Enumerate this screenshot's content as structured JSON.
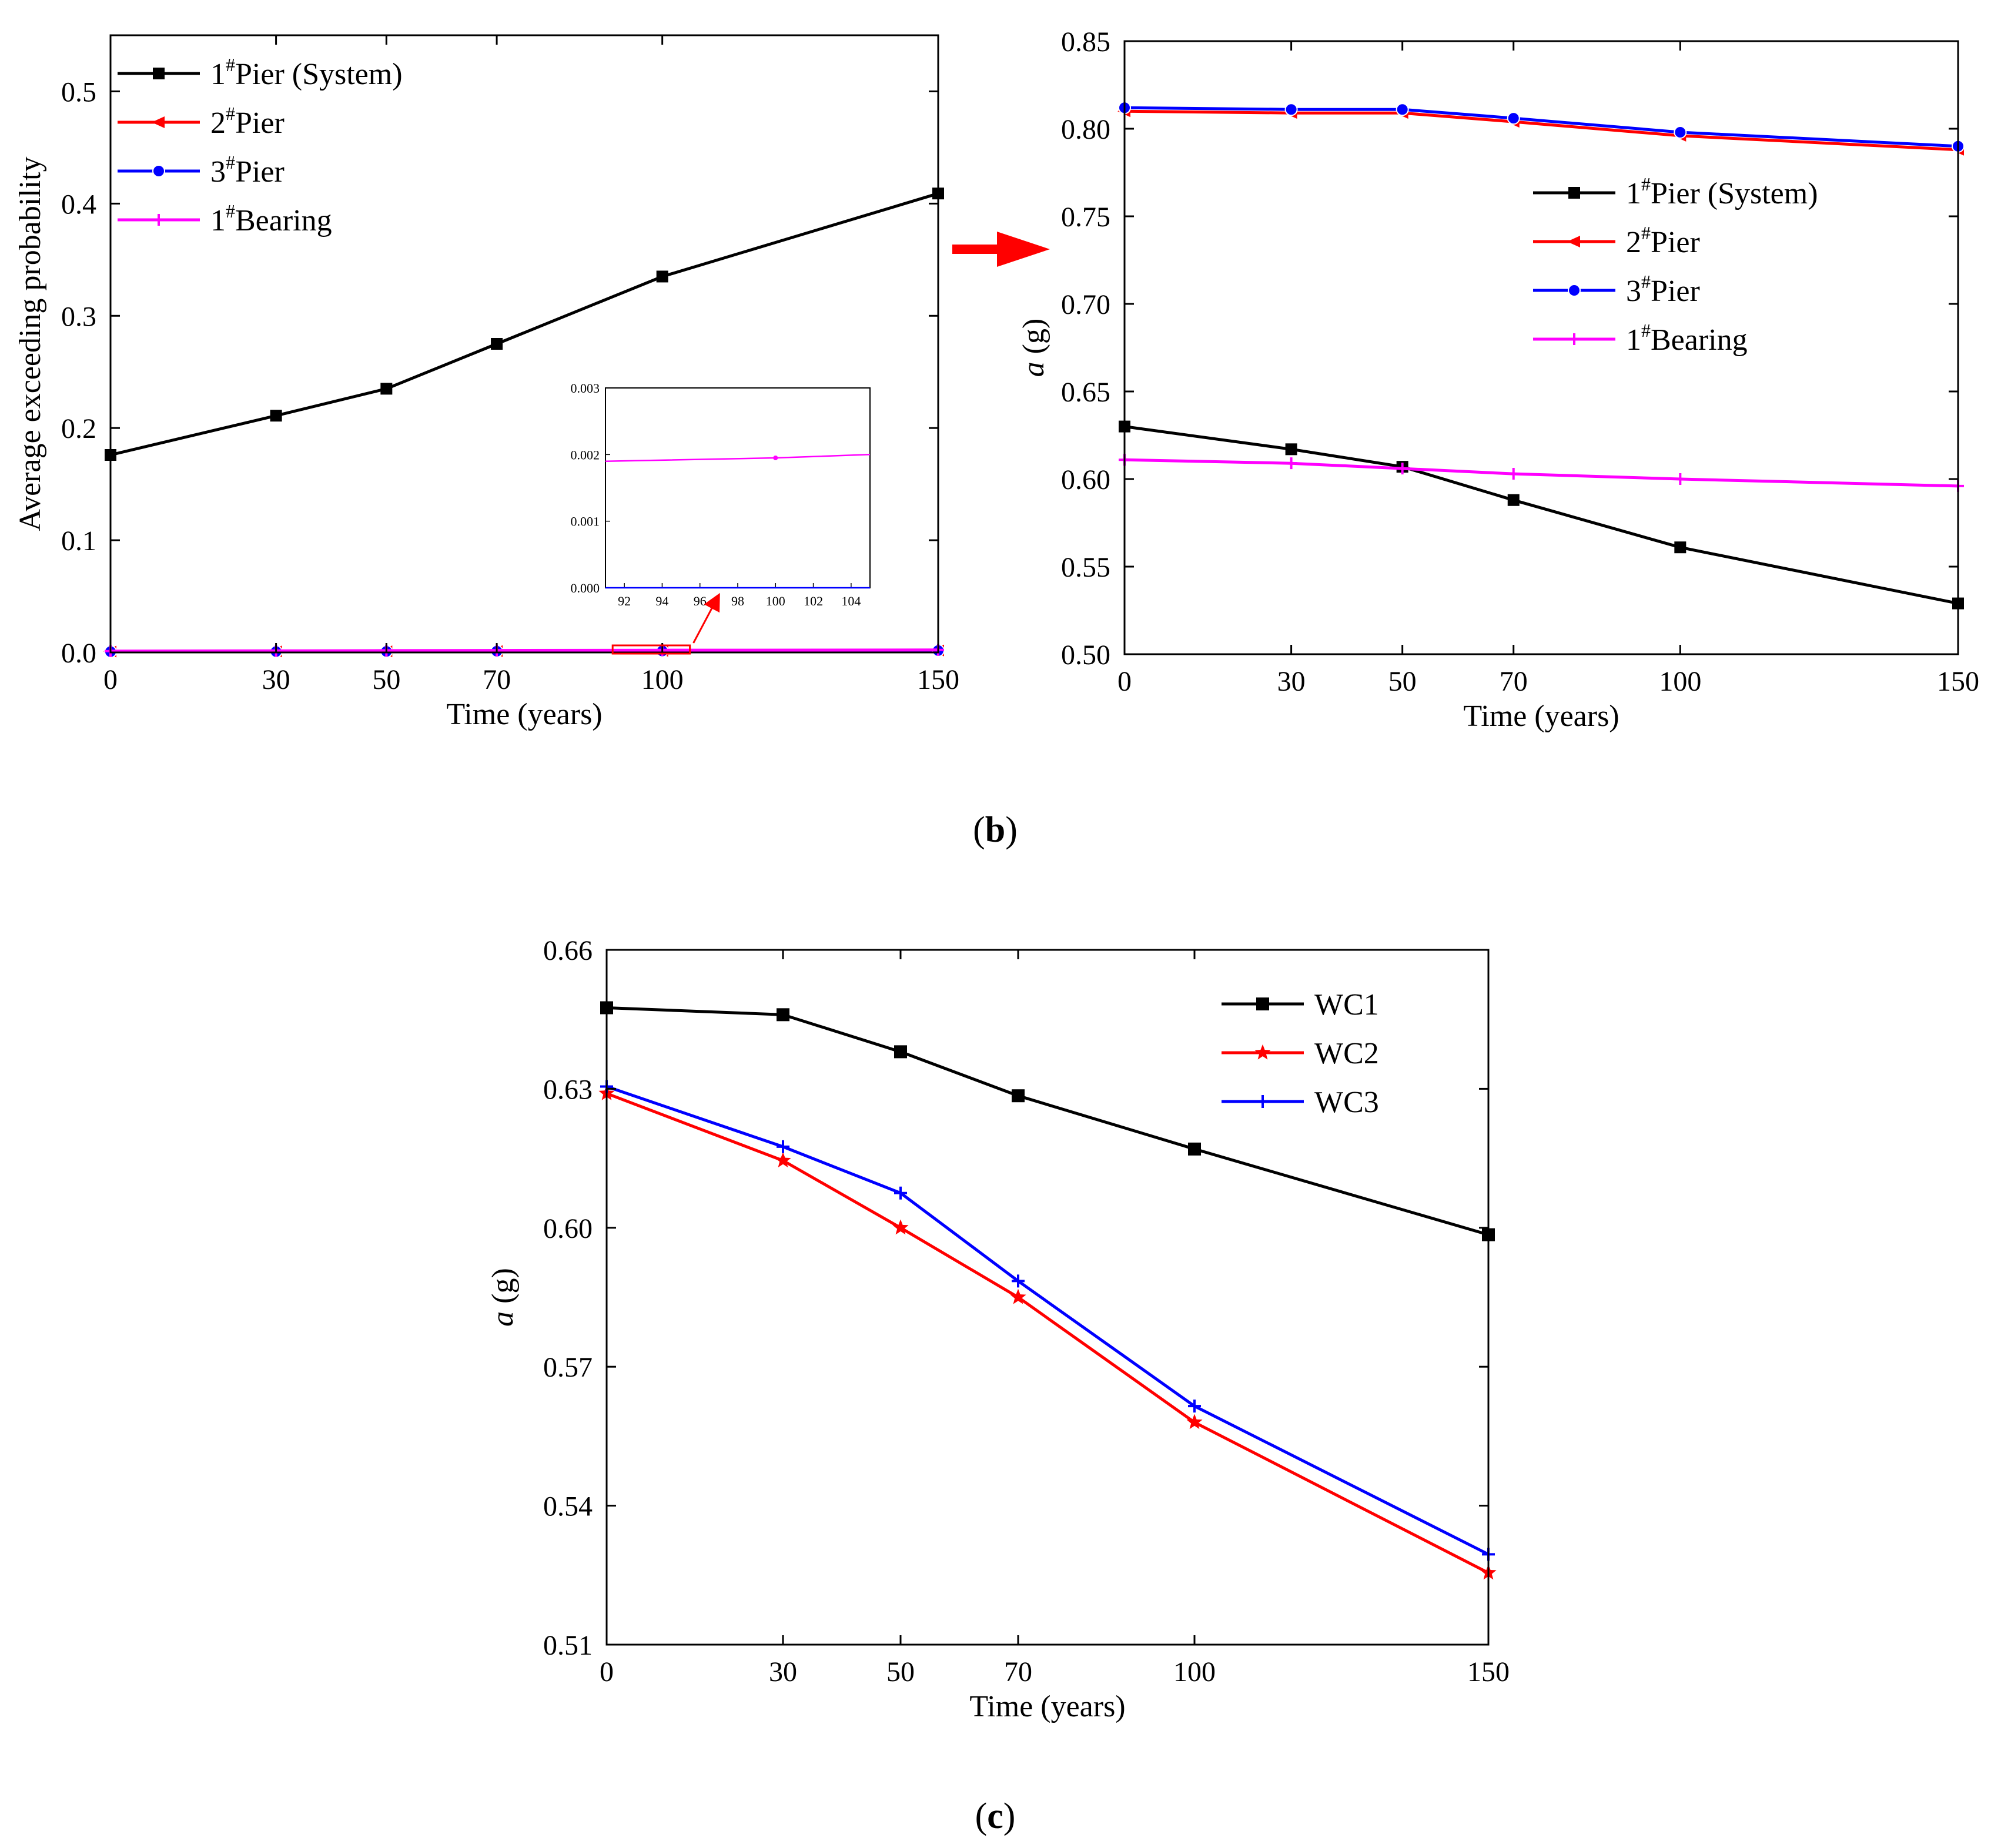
{
  "colors": {
    "black": "#000000",
    "red": "#ff0000",
    "blue": "#0000ff",
    "magenta": "#ff00ff"
  },
  "panel_labels": {
    "b_open": "(",
    "b_letter": "b",
    "b_close": ")",
    "c_open": "(",
    "c_letter": "c",
    "c_close": ")"
  },
  "chart_data": [
    {
      "id": "b-left",
      "type": "line",
      "title": "",
      "xlabel": "Time (years)",
      "ylabel": "Average exceeding probability",
      "xlim": [
        0,
        150
      ],
      "ylim": [
        0,
        0.55
      ],
      "xticks": [
        0,
        30,
        50,
        70,
        100,
        150
      ],
      "yticks": [
        0.0,
        0.1,
        0.2,
        0.3,
        0.4,
        0.5
      ],
      "ytick_labels": [
        "0.0",
        "0.1",
        "0.2",
        "0.3",
        "0.4",
        "0.5"
      ],
      "legend_position": "top-left",
      "x": [
        0,
        30,
        50,
        70,
        100,
        150
      ],
      "series": [
        {
          "name": "Pier (System)",
          "prefix": "1",
          "sup": "#",
          "color": "#000000",
          "marker": "square",
          "values": [
            0.176,
            0.211,
            0.235,
            0.275,
            0.335,
            0.409
          ]
        },
        {
          "name": "Pier",
          "prefix": "2",
          "sup": "#",
          "color": "#ff0000",
          "marker": "triangle-left",
          "values": [
            0.0008,
            0.0009,
            0.001,
            0.0012,
            0.0014,
            0.0018
          ]
        },
        {
          "name": "Pier",
          "prefix": "3",
          "sup": "#",
          "color": "#0000ff",
          "marker": "circle",
          "values": [
            0.0007,
            0.0008,
            0.0009,
            0.0011,
            0.0013,
            0.0017
          ]
        },
        {
          "name": "Bearing",
          "prefix": "1",
          "sup": "#",
          "color": "#ff00ff",
          "marker": "plus",
          "values": [
            0.0012,
            0.0014,
            0.0016,
            0.0018,
            0.002,
            0.0022
          ]
        }
      ],
      "inset": {
        "xlim": [
          91,
          105
        ],
        "ylim": [
          0,
          0.003
        ],
        "xticks": [
          92,
          94,
          96,
          98,
          100,
          102,
          104
        ],
        "yticks": [
          0.0,
          0.001,
          0.002,
          0.003
        ],
        "ytick_labels": [
          "0.000",
          "0.001",
          "0.002",
          "0.003"
        ],
        "x": [
          91,
          100,
          105
        ],
        "series": [
          {
            "name": "Bearing",
            "color": "#ff00ff",
            "values": [
              0.0019,
              0.00195,
              0.002
            ]
          },
          {
            "name": "Pier",
            "color": "#0000ff",
            "values": [
              0.0,
              0.0,
              0.0
            ]
          }
        ]
      }
    },
    {
      "id": "b-right",
      "type": "line",
      "title": "",
      "xlabel": "Time (years)",
      "ylabel_italic": "a",
      "ylabel_rest": " (g)",
      "xlim": [
        0,
        150
      ],
      "ylim": [
        0.5,
        0.85
      ],
      "xticks": [
        0,
        30,
        50,
        70,
        100,
        150
      ],
      "yticks": [
        0.5,
        0.55,
        0.6,
        0.65,
        0.7,
        0.75,
        0.8,
        0.85
      ],
      "ytick_labels": [
        "0.50",
        "0.55",
        "0.60",
        "0.65",
        "0.70",
        "0.75",
        "0.80",
        "0.85"
      ],
      "legend_position": "top-right",
      "x": [
        0,
        30,
        50,
        70,
        100,
        150
      ],
      "series": [
        {
          "name": "Pier (System)",
          "prefix": "1",
          "sup": "#",
          "color": "#000000",
          "marker": "square",
          "values": [
            0.63,
            0.617,
            0.607,
            0.588,
            0.561,
            0.529
          ]
        },
        {
          "name": "Pier",
          "prefix": "2",
          "sup": "#",
          "color": "#ff0000",
          "marker": "triangle-left",
          "values": [
            0.81,
            0.809,
            0.809,
            0.804,
            0.796,
            0.788
          ]
        },
        {
          "name": "Pier",
          "prefix": "3",
          "sup": "#",
          "color": "#0000ff",
          "marker": "circle",
          "values": [
            0.812,
            0.811,
            0.811,
            0.806,
            0.798,
            0.79
          ]
        },
        {
          "name": "Bearing",
          "prefix": "1",
          "sup": "#",
          "color": "#ff00ff",
          "marker": "plus",
          "values": [
            0.611,
            0.609,
            0.606,
            0.603,
            0.6,
            0.596
          ]
        }
      ]
    },
    {
      "id": "c",
      "type": "line",
      "title": "",
      "xlabel": "Time (years)",
      "ylabel_italic": "a",
      "ylabel_rest": " (g)",
      "xlim": [
        0,
        150
      ],
      "ylim": [
        0.51,
        0.66
      ],
      "xticks": [
        0,
        30,
        50,
        70,
        100,
        150
      ],
      "yticks": [
        0.51,
        0.54,
        0.57,
        0.6,
        0.63,
        0.66
      ],
      "ytick_labels": [
        "0.51",
        "0.54",
        "0.57",
        "0.60",
        "0.63",
        "0.66"
      ],
      "legend_position": "top-right",
      "x": [
        0,
        30,
        50,
        70,
        100,
        150
      ],
      "series": [
        {
          "name": "WC1",
          "color": "#000000",
          "marker": "square",
          "values": [
            0.6475,
            0.646,
            0.638,
            0.6285,
            0.617,
            0.5985
          ]
        },
        {
          "name": "WC2",
          "color": "#ff0000",
          "marker": "star",
          "values": [
            0.629,
            0.6145,
            0.6,
            0.585,
            0.558,
            0.5255
          ]
        },
        {
          "name": "WC3",
          "color": "#0000ff",
          "marker": "plus",
          "values": [
            0.6305,
            0.6175,
            0.6075,
            0.5885,
            0.5615,
            0.5295
          ]
        }
      ]
    }
  ]
}
